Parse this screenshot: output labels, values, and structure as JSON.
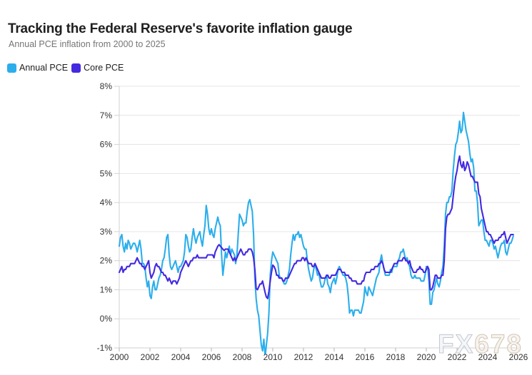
{
  "header": {
    "title": "Tracking the Federal Reserve's favorite inflation gauge",
    "subtitle": "Annual PCE inflation from 2000 to 2025"
  },
  "legend": [
    {
      "label": "Annual PCE",
      "color": "#2baeec"
    },
    {
      "label": "Core PCE",
      "color": "#4329e0"
    }
  ],
  "watermark": {
    "part1": "FX",
    "part2": "678"
  },
  "colors": {
    "annual_pce": "#2baeec",
    "core_pce": "#4329e0",
    "gridline": "#e5e5e5",
    "axis_line": "#d2d2d2",
    "tick": "#b3b3b3",
    "tick_label": "#333333",
    "watermark_fx": "#c3c8d4",
    "watermark_678": "#d2c5b4"
  },
  "chart_data": {
    "type": "line",
    "title": "Tracking the Federal Reserve's favorite inflation gauge",
    "subtitle": "Annual PCE inflation from 2000 to 2025",
    "grid": true,
    "legend_position": "top-left",
    "x_start_year": 2000,
    "interval_months": 1,
    "x_axis": {
      "min": 2000,
      "max": 2026,
      "tick_values": [
        2000,
        2002,
        2004,
        2006,
        2008,
        2010,
        2012,
        2014,
        2016,
        2018,
        2020,
        2022,
        2024,
        2026
      ],
      "tick_labels": [
        "2000",
        "2002",
        "2004",
        "2006",
        "2008",
        "2010",
        "2012",
        "2014",
        "2016",
        "2018",
        "2020",
        "2022",
        "2024",
        "2026"
      ]
    },
    "y_axis": {
      "min": -1,
      "max": 8,
      "tick_values": [
        8,
        7,
        6,
        5,
        4,
        3,
        2,
        1,
        0,
        -1
      ],
      "tick_labels": [
        "8%",
        "7%",
        "6%",
        "5%",
        "4%",
        "3%",
        "2%",
        "1%",
        "0%",
        "-1%"
      ]
    },
    "series": [
      {
        "name": "Annual PCE",
        "color": "#2baeec",
        "values": [
          2.5,
          2.8,
          2.9,
          2.5,
          2.3,
          2.6,
          2.4,
          2.7,
          2.6,
          2.4,
          2.5,
          2.6,
          2.6,
          2.5,
          2.3,
          2.5,
          2.7,
          2.4,
          1.9,
          1.9,
          1.8,
          1.4,
          1.1,
          1.3,
          0.8,
          0.7,
          1.1,
          1.3,
          1.0,
          1.0,
          1.2,
          1.4,
          1.5,
          1.7,
          2.0,
          2.1,
          2.4,
          2.8,
          2.9,
          2.2,
          1.8,
          1.7,
          1.8,
          1.9,
          2.0,
          1.8,
          1.6,
          1.8,
          1.8,
          1.9,
          2.0,
          2.3,
          2.9,
          2.8,
          2.5,
          2.3,
          2.4,
          2.8,
          3.1,
          2.8,
          2.6,
          2.8,
          2.9,
          3.0,
          2.7,
          2.5,
          2.9,
          3.2,
          3.9,
          3.6,
          3.1,
          2.9,
          3.1,
          2.9,
          2.8,
          3.1,
          3.3,
          3.5,
          3.3,
          3.2,
          2.2,
          1.5,
          1.9,
          2.3,
          2.1,
          2.3,
          2.5,
          2.2,
          2.4,
          2.3,
          2.2,
          1.9,
          2.2,
          2.9,
          3.6,
          3.5,
          3.4,
          3.2,
          3.3,
          3.3,
          3.7,
          4.0,
          4.1,
          3.9,
          3.7,
          2.9,
          1.4,
          0.7,
          0.3,
          0.1,
          -0.4,
          -0.9,
          -1.1,
          -0.7,
          -1.3,
          -0.9,
          -0.5,
          0.2,
          1.5,
          2.0,
          2.3,
          2.2,
          2.1,
          2.0,
          1.9,
          1.5,
          1.4,
          1.4,
          1.3,
          1.2,
          1.2,
          1.3,
          1.5,
          1.7,
          2.2,
          2.6,
          2.9,
          2.7,
          2.9,
          2.9,
          3.0,
          2.8,
          2.9,
          2.7,
          2.5,
          2.4,
          2.4,
          2.0,
          1.7,
          1.5,
          1.3,
          1.4,
          1.7,
          1.9,
          1.7,
          1.5,
          1.6,
          1.3,
          1.1,
          1.1,
          1.2,
          1.4,
          1.5,
          1.2,
          1.1,
          0.9,
          1.2,
          1.3,
          1.4,
          1.2,
          1.4,
          1.7,
          1.8,
          1.7,
          1.6,
          1.5,
          1.5,
          1.4,
          1.2,
          0.8,
          0.2,
          0.3,
          0.3,
          0.1,
          0.3,
          0.3,
          0.3,
          0.3,
          0.2,
          0.2,
          0.4,
          0.6,
          1.1,
          0.9,
          0.8,
          1.1,
          1.0,
          0.9,
          0.8,
          1.0,
          1.2,
          1.4,
          1.5,
          1.6,
          2.0,
          2.2,
          1.9,
          1.7,
          1.5,
          1.5,
          1.5,
          1.5,
          1.7,
          1.6,
          1.8,
          1.8,
          1.8,
          1.8,
          2.0,
          2.1,
          2.3,
          2.3,
          2.4,
          2.2,
          2.0,
          2.1,
          1.9,
          1.8,
          1.5,
          1.4,
          1.4,
          1.5,
          1.4,
          1.4,
          1.4,
          1.4,
          1.3,
          1.3,
          1.3,
          1.5,
          1.8,
          1.8,
          1.3,
          0.5,
          0.5,
          0.9,
          1.0,
          1.2,
          1.4,
          1.2,
          1.1,
          1.3,
          1.6,
          1.8,
          2.5,
          3.6,
          4.0,
          4.0,
          4.2,
          4.2,
          4.4,
          5.1,
          5.6,
          6.0,
          6.1,
          6.4,
          6.8,
          6.4,
          6.5,
          7.1,
          6.8,
          6.5,
          6.3,
          6.1,
          5.7,
          5.4,
          5.5,
          5.2,
          4.4,
          4.4,
          4.0,
          3.2,
          3.3,
          3.4,
          3.4,
          3.0,
          2.7,
          2.7,
          2.6,
          2.5,
          2.7,
          2.7,
          2.6,
          2.4,
          2.5,
          2.3,
          2.1,
          2.3,
          2.5,
          2.6,
          2.6,
          2.7,
          2.3,
          2.2,
          2.4,
          2.6,
          2.6,
          2.7,
          2.85
        ]
      },
      {
        "name": "Core PCE",
        "color": "#4329e0",
        "values": [
          1.6,
          1.7,
          1.8,
          1.6,
          1.7,
          1.7,
          1.8,
          1.8,
          1.8,
          1.9,
          1.9,
          1.9,
          1.9,
          2.0,
          2.1,
          2.0,
          1.9,
          1.9,
          1.8,
          1.8,
          1.7,
          1.8,
          1.9,
          2.0,
          1.6,
          1.4,
          1.5,
          1.6,
          1.8,
          1.9,
          1.8,
          1.8,
          1.7,
          1.6,
          1.6,
          1.5,
          1.5,
          1.4,
          1.3,
          1.4,
          1.3,
          1.2,
          1.3,
          1.3,
          1.3,
          1.2,
          1.3,
          1.4,
          1.6,
          1.7,
          1.8,
          1.9,
          2.0,
          1.9,
          1.8,
          1.9,
          2.0,
          2.0,
          2.1,
          2.1,
          2.1,
          2.2,
          2.1,
          2.1,
          2.1,
          2.1,
          2.1,
          2.1,
          2.1,
          2.2,
          2.2,
          2.2,
          2.2,
          2.2,
          2.1,
          2.3,
          2.4,
          2.5,
          2.55,
          2.5,
          2.45,
          2.4,
          2.35,
          2.4,
          2.4,
          2.4,
          2.3,
          2.2,
          2.1,
          2.0,
          2.1,
          2.0,
          2.1,
          2.2,
          2.3,
          2.4,
          2.3,
          2.2,
          2.2,
          2.3,
          2.3,
          2.4,
          2.4,
          2.4,
          2.3,
          2.1,
          1.7,
          1.05,
          1.0,
          1.1,
          1.2,
          1.2,
          1.3,
          1.1,
          0.9,
          0.75,
          0.7,
          0.95,
          1.3,
          1.6,
          1.85,
          1.8,
          1.7,
          1.5,
          1.5,
          1.4,
          1.4,
          1.4,
          1.3,
          1.3,
          1.4,
          1.4,
          1.4,
          1.5,
          1.6,
          1.7,
          1.8,
          1.9,
          1.9,
          2.0,
          2.0,
          2.0,
          2.0,
          2.1,
          2.1,
          2.0,
          2.1,
          2.0,
          1.9,
          1.9,
          1.9,
          1.8,
          1.8,
          1.9,
          1.8,
          1.7,
          1.6,
          1.5,
          1.4,
          1.4,
          1.4,
          1.4,
          1.5,
          1.5,
          1.4,
          1.4,
          1.5,
          1.5,
          1.5,
          1.5,
          1.6,
          1.7,
          1.7,
          1.7,
          1.6,
          1.6,
          1.6,
          1.5,
          1.5,
          1.5,
          1.4,
          1.4,
          1.3,
          1.3,
          1.3,
          1.3,
          1.2,
          1.2,
          1.2,
          1.2,
          1.3,
          1.3,
          1.5,
          1.6,
          1.6,
          1.6,
          1.6,
          1.7,
          1.7,
          1.7,
          1.8,
          1.8,
          1.8,
          1.9,
          1.9,
          2.0,
          1.9,
          1.7,
          1.6,
          1.6,
          1.6,
          1.6,
          1.6,
          1.7,
          1.8,
          1.9,
          1.9,
          1.9,
          2.0,
          2.0,
          2.0,
          2.0,
          2.1,
          2.1,
          2.0,
          2.0,
          1.9,
          2.0,
          1.8,
          1.7,
          1.6,
          1.6,
          1.6,
          1.7,
          1.7,
          1.8,
          1.7,
          1.7,
          1.6,
          1.6,
          1.7,
          1.8,
          1.7,
          1.0,
          1.0,
          1.1,
          1.3,
          1.5,
          1.5,
          1.4,
          1.4,
          1.4,
          1.5,
          1.5,
          2.0,
          3.1,
          3.5,
          3.6,
          3.6,
          3.7,
          3.8,
          4.2,
          4.6,
          4.9,
          5.1,
          5.4,
          5.6,
          5.3,
          5.2,
          5.4,
          5.1,
          5.2,
          5.4,
          5.3,
          5.1,
          4.9,
          4.9,
          4.8,
          4.7,
          4.7,
          4.7,
          4.3,
          4.2,
          3.8,
          3.6,
          3.4,
          3.2,
          3.0,
          3.0,
          2.9,
          2.9,
          2.8,
          2.7,
          2.6,
          2.7,
          2.7,
          2.7,
          2.8,
          2.8,
          2.9,
          2.9,
          3.0,
          2.8,
          2.6,
          2.7,
          2.8,
          2.9,
          2.9,
          2.9
        ]
      }
    ]
  }
}
